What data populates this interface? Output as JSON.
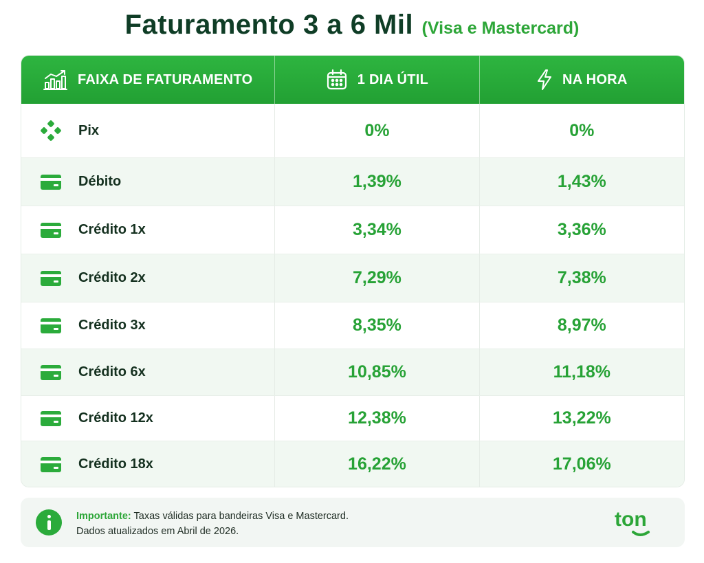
{
  "header": {
    "title": "Faturamento 3 a 6 Mil",
    "subtitle": "(Visa e Mastercard)"
  },
  "table": {
    "columns": [
      {
        "label": "FAIXA DE FATURAMENTO",
        "icon": "bar-chart-trend-icon"
      },
      {
        "label": "1 DIA ÚTIL",
        "icon": "calendar-icon"
      },
      {
        "label": "NA HORA",
        "icon": "lightning-icon"
      }
    ],
    "rows": [
      {
        "label": "Pix",
        "icon": "pix-icon",
        "one_day": "0%",
        "now": "0%"
      },
      {
        "label": "Débito",
        "icon": "card-icon",
        "one_day": "1,39%",
        "now": "1,43%"
      },
      {
        "label": "Crédito 1x",
        "icon": "card-icon",
        "one_day": "3,34%",
        "now": "3,36%"
      },
      {
        "label": "Crédito 2x",
        "icon": "card-icon",
        "one_day": "7,29%",
        "now": "7,38%"
      },
      {
        "label": "Crédito 3x",
        "icon": "card-icon",
        "one_day": "8,35%",
        "now": "8,97%"
      },
      {
        "label": "Crédito 6x",
        "icon": "card-icon",
        "one_day": "10,85%",
        "now": "11,18%"
      },
      {
        "label": "Crédito 12x",
        "icon": "card-icon",
        "one_day": "12,38%",
        "now": "13,22%"
      },
      {
        "label": "Crédito 18x",
        "icon": "card-icon",
        "one_day": "16,22%",
        "now": "17,06%"
      }
    ]
  },
  "note": {
    "strong": "Importante:",
    "line1": "Taxas válidas para bandeiras Visa e Mastercard.",
    "line2": "Dados atualizados em Abril de 2026."
  },
  "brand": {
    "logo_text": "ton",
    "logo_color": "#2da638"
  },
  "colors": {
    "accent": "#27a236",
    "header_bg": "#2eb540",
    "title": "#0f3d26",
    "row_alt": "#f1f8f2"
  }
}
